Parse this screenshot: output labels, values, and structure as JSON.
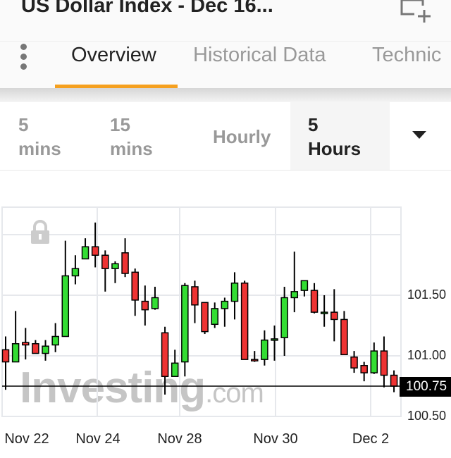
{
  "header": {
    "title": "US Dollar Index - Dec 16...",
    "add_icon": "add-to-watchlist-icon"
  },
  "tabs": [
    {
      "label": "Overview",
      "active": true
    },
    {
      "label": "Historical Data"
    },
    {
      "label": "Technic"
    }
  ],
  "accent_color": "#f5a01f",
  "intervals": [
    {
      "line1": "5",
      "line2": "mins"
    },
    {
      "line1": "15",
      "line2": "mins"
    },
    {
      "line1": "Hourly",
      "line2": ""
    },
    {
      "line1": "5",
      "line2": "Hours",
      "selected": true
    }
  ],
  "watermark": {
    "main": "Investing",
    "suffix": ".com"
  },
  "chart_data": {
    "type": "candlestick",
    "interval": "5 Hours",
    "x_tick_labels": [
      "Nov 22",
      "Nov 24",
      "Nov 28",
      "Nov 30",
      "Dec 2"
    ],
    "y_tick_labels": [
      "101.50",
      "101.00",
      "100.50"
    ],
    "ylim": [
      100.5,
      102.0
    ],
    "grid": true,
    "current_price": "100.75",
    "up_color": "#33dd33",
    "down_color": "#ee3333",
    "candles": [
      [
        101.05,
        101.16,
        100.72,
        100.95
      ],
      [
        100.95,
        101.37,
        100.95,
        101.1
      ],
      [
        101.11,
        101.23,
        100.97,
        101.09
      ],
      [
        101.1,
        101.13,
        101.02,
        101.02
      ],
      [
        101.02,
        101.13,
        100.96,
        101.08
      ],
      [
        101.09,
        101.27,
        101.03,
        101.16
      ],
      [
        101.16,
        101.95,
        101.16,
        101.66
      ],
      [
        101.66,
        101.83,
        101.59,
        101.72
      ],
      [
        101.8,
        101.97,
        101.8,
        101.9
      ],
      [
        101.9,
        102.1,
        101.73,
        101.83
      ],
      [
        101.83,
        101.87,
        101.53,
        101.72
      ],
      [
        101.72,
        101.78,
        101.6,
        101.76
      ],
      [
        101.85,
        101.97,
        101.65,
        101.68
      ],
      [
        101.69,
        101.72,
        101.33,
        101.46
      ],
      [
        101.45,
        101.58,
        101.25,
        101.38
      ],
      [
        101.39,
        101.57,
        101.38,
        101.48
      ],
      [
        101.19,
        101.24,
        100.68,
        100.83
      ],
      [
        100.83,
        101.05,
        100.83,
        100.94
      ],
      [
        100.95,
        101.6,
        100.83,
        101.58
      ],
      [
        101.57,
        101.62,
        101.27,
        101.42
      ],
      [
        101.44,
        101.44,
        101.18,
        101.2
      ],
      [
        101.26,
        101.44,
        101.23,
        101.39
      ],
      [
        101.39,
        101.48,
        101.24,
        101.45
      ],
      [
        101.45,
        101.69,
        101.3,
        101.6
      ],
      [
        101.6,
        101.62,
        100.97,
        100.97
      ],
      [
        100.97,
        101.04,
        100.95,
        100.96
      ],
      [
        100.97,
        101.21,
        100.92,
        101.13
      ],
      [
        101.13,
        101.25,
        100.96,
        101.14
      ],
      [
        101.15,
        101.57,
        101.0,
        101.48
      ],
      [
        101.48,
        101.86,
        101.36,
        101.53
      ],
      [
        101.54,
        101.62,
        101.49,
        101.62
      ],
      [
        101.54,
        101.6,
        101.35,
        101.36
      ],
      [
        101.36,
        101.5,
        101.24,
        101.36
      ],
      [
        101.36,
        101.55,
        101.12,
        101.3
      ],
      [
        101.3,
        101.37,
        101.01,
        101.01
      ],
      [
        100.99,
        101.04,
        100.86,
        100.9
      ],
      [
        100.92,
        100.95,
        100.79,
        100.86
      ],
      [
        100.86,
        101.11,
        100.85,
        101.04
      ],
      [
        101.04,
        101.16,
        100.74,
        100.84
      ],
      [
        100.84,
        100.88,
        100.7,
        100.75
      ]
    ]
  }
}
